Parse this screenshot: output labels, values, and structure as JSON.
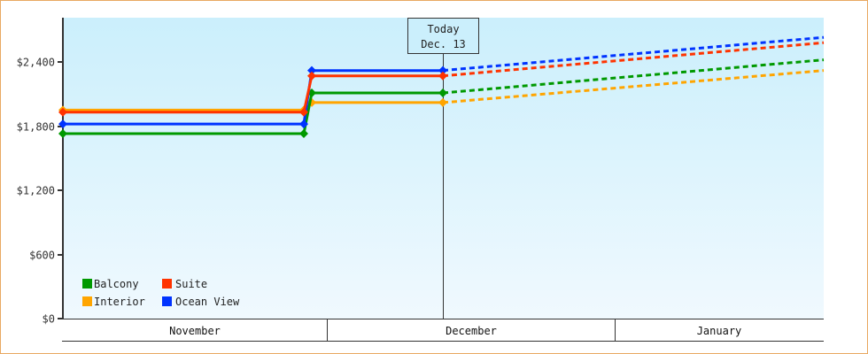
{
  "chart_data": {
    "type": "line",
    "title": "",
    "xlabel": "",
    "ylabel": "",
    "ylim": [
      0,
      2950
    ],
    "yticks": [
      {
        "value": 0,
        "label": "$0"
      },
      {
        "value": 600,
        "label": "$600"
      },
      {
        "value": 1200,
        "label": "$1,200"
      },
      {
        "value": 1800,
        "label": "$1,800"
      },
      {
        "value": 2400,
        "label": "$2,400"
      }
    ],
    "categories": [
      "November",
      "December",
      "January"
    ],
    "today_marker": {
      "line1": "Today",
      "line2": "Dec. 13"
    },
    "x_points": [
      "Nov start",
      "Nov end",
      "Dec start",
      "Dec 13 (today)",
      "Jan end (projected)"
    ],
    "series": [
      {
        "name": "Balcony",
        "color": "#009900",
        "values": [
          1730,
          1730,
          2110,
          2110,
          2420
        ],
        "projected_from_index": 3
      },
      {
        "name": "Suite",
        "color": "#ff3300",
        "values": [
          1930,
          1930,
          2270,
          2270,
          2580
        ],
        "projected_from_index": 3
      },
      {
        "name": "Interior",
        "color": "#ffa500",
        "values": [
          1950,
          1950,
          2020,
          2020,
          2320
        ],
        "projected_from_index": 3
      },
      {
        "name": "Ocean View",
        "color": "#0033ff",
        "values": [
          1820,
          1820,
          2320,
          2320,
          2630
        ],
        "projected_from_index": 3
      }
    ],
    "grid": false,
    "legend_position": "bottom-left inside plot"
  },
  "legend": [
    {
      "label": "Balcony",
      "color": "#009900"
    },
    {
      "label": "Suite",
      "color": "#ff3300"
    },
    {
      "label": "Interior",
      "color": "#ffa500"
    },
    {
      "label": "Ocean View",
      "color": "#0033ff"
    }
  ],
  "today": {
    "line1": "Today",
    "line2": "Dec. 13"
  },
  "months": [
    "November",
    "December",
    "January"
  ],
  "yticks": [
    "$0",
    "$600",
    "$1,200",
    "$1,800",
    "$2,400"
  ]
}
